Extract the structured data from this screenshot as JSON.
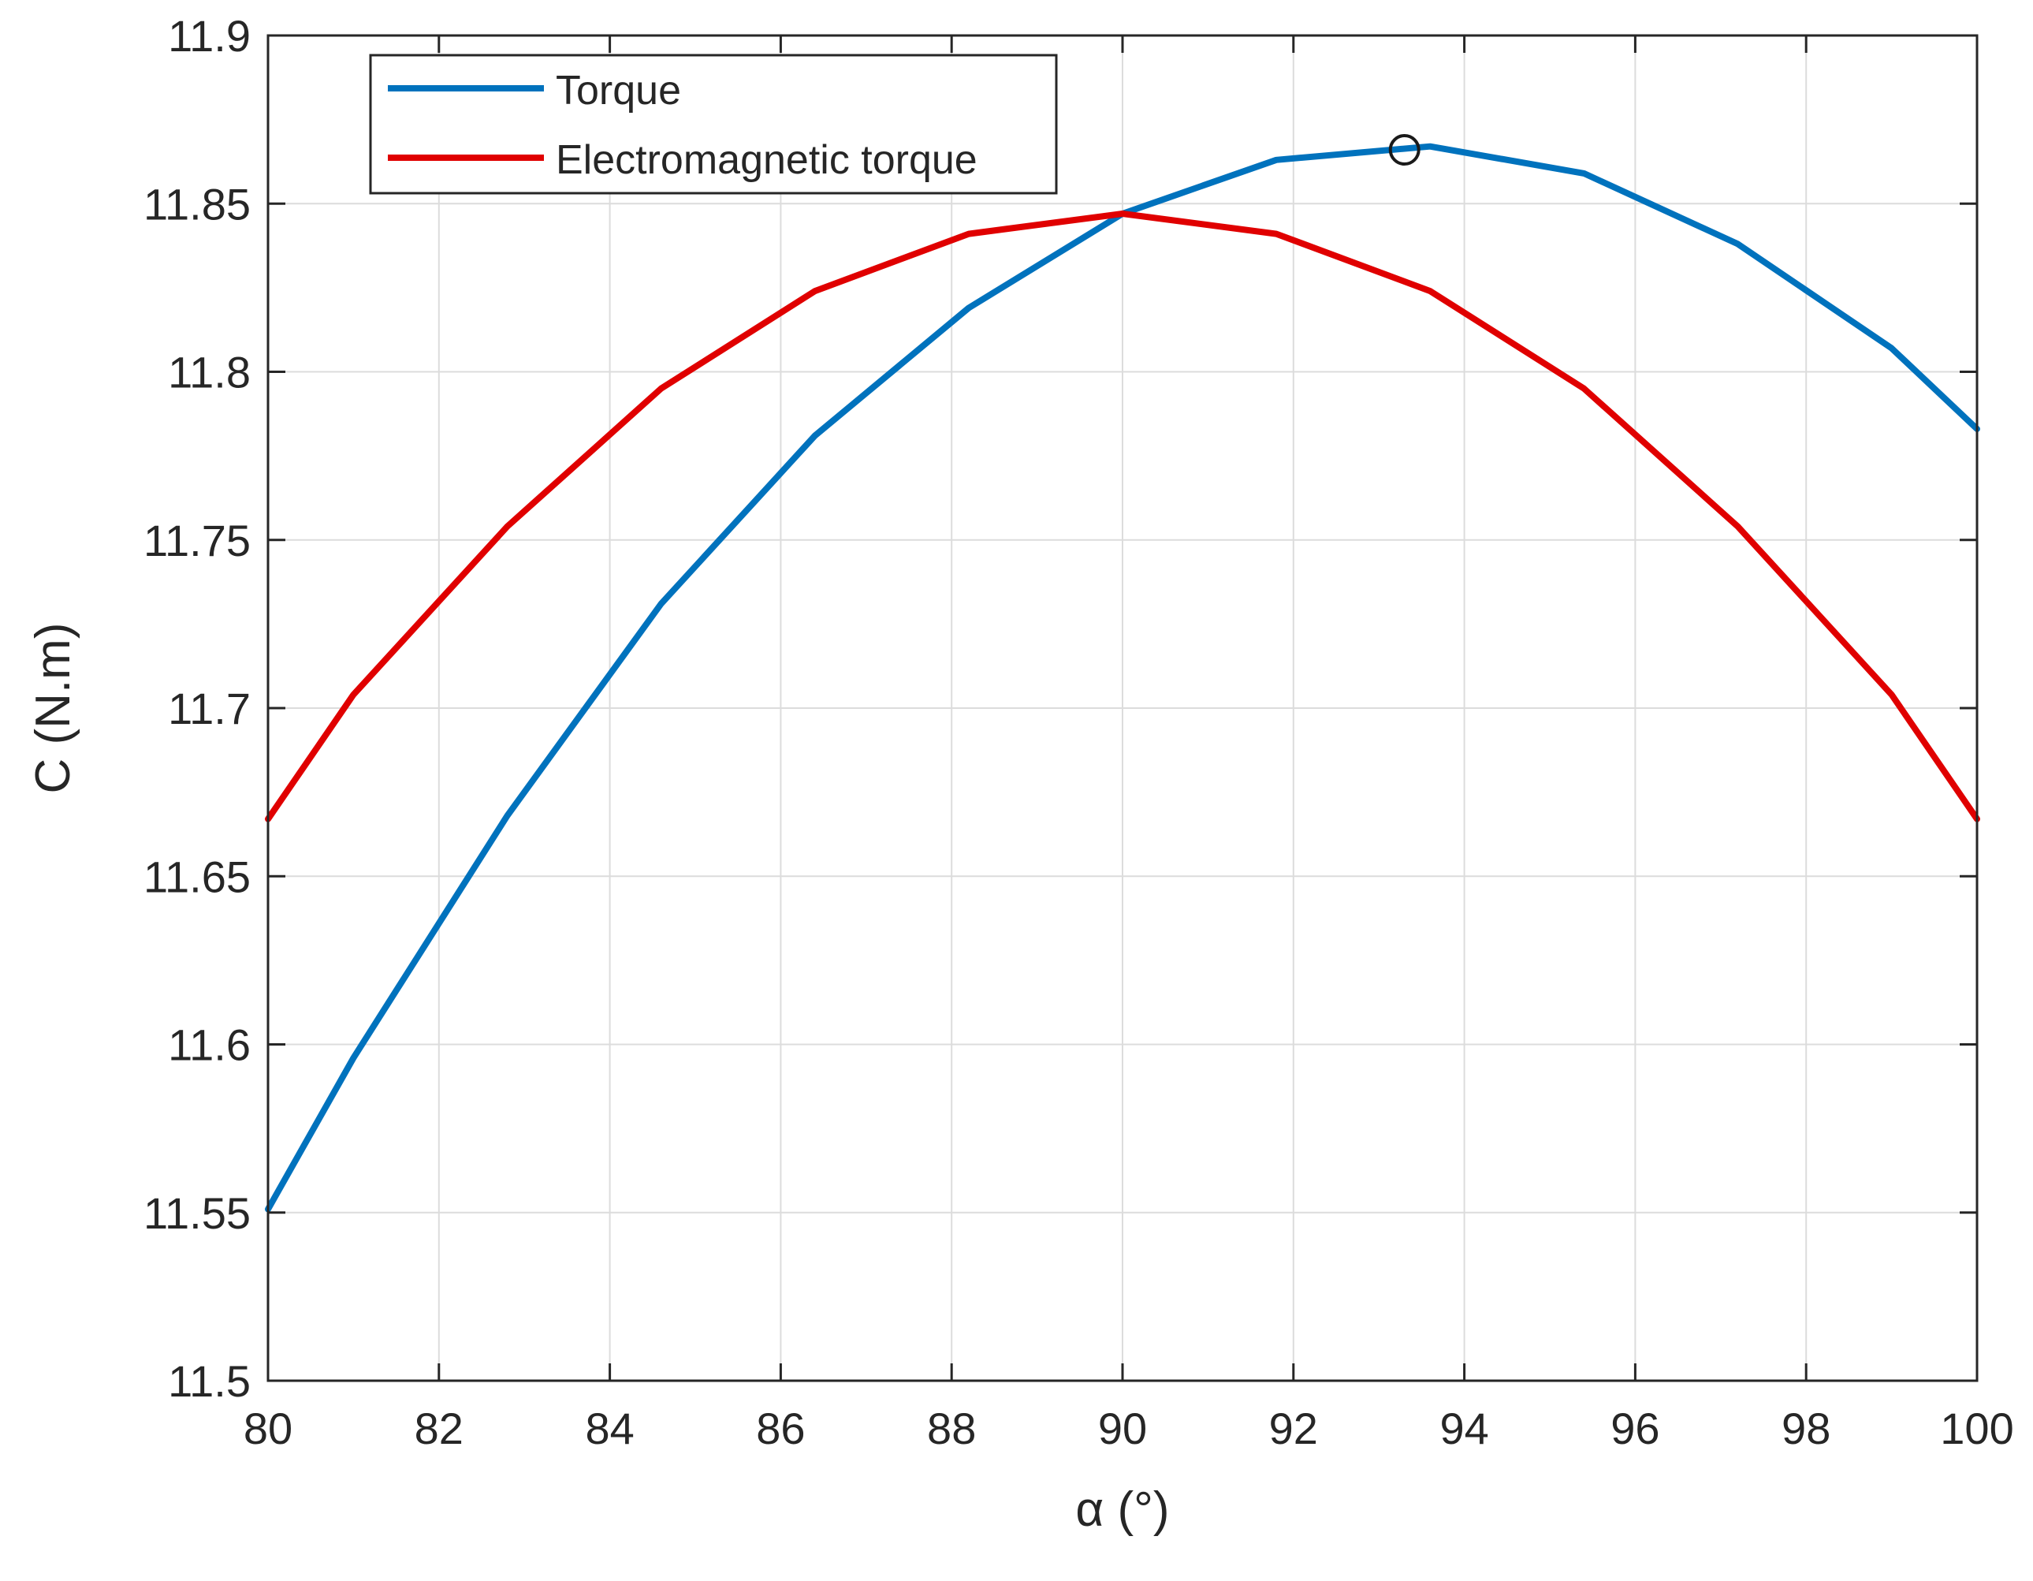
{
  "chart_data": {
    "type": "line",
    "xlabel": "α (°)",
    "ylabel": "C (N.m)",
    "xlim": [
      80,
      100
    ],
    "ylim": [
      11.5,
      11.9
    ],
    "x_ticks": [
      "80",
      "82",
      "84",
      "86",
      "88",
      "90",
      "92",
      "94",
      "96",
      "98",
      "100"
    ],
    "y_ticks": [
      "11.5",
      "11.55",
      "11.6",
      "11.65",
      "11.7",
      "11.75",
      "11.8",
      "11.85",
      "11.9"
    ],
    "grid": true,
    "legend_position": "top-left",
    "series": [
      {
        "name": "Torque",
        "color": "#0072BD",
        "x": [
          80,
          81,
          82.8,
          84.6,
          86.4,
          88.2,
          90,
          91.8,
          93.6,
          95.4,
          97.2,
          99,
          100
        ],
        "y": [
          11.551,
          11.596,
          11.668,
          11.731,
          11.781,
          11.819,
          11.847,
          11.863,
          11.867,
          11.859,
          11.838,
          11.807,
          11.783
        ]
      },
      {
        "name": "Electromagnetic torque",
        "color": "#E00000",
        "x": [
          80,
          81,
          82.8,
          84.6,
          86.4,
          88.2,
          90,
          91.8,
          93.6,
          95.4,
          97.2,
          99,
          100
        ],
        "y": [
          11.667,
          11.704,
          11.754,
          11.795,
          11.824,
          11.841,
          11.847,
          11.841,
          11.824,
          11.795,
          11.754,
          11.704,
          11.667
        ]
      }
    ],
    "marker": {
      "type": "circle",
      "x": 93.3,
      "y": 11.866
    }
  }
}
